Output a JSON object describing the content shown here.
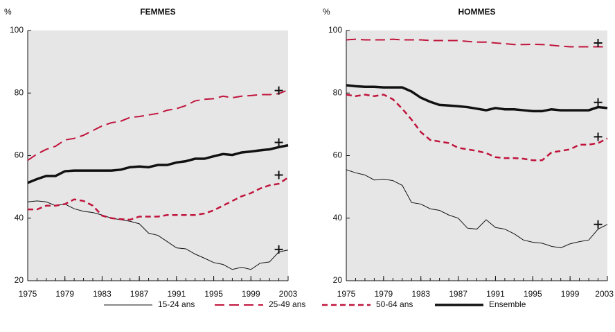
{
  "chart_data": [
    {
      "type": "line",
      "title": "FEMMES",
      "ylabel": "%",
      "x": [
        1975,
        1976,
        1977,
        1978,
        1979,
        1980,
        1981,
        1982,
        1983,
        1984,
        1985,
        1986,
        1987,
        1988,
        1989,
        1990,
        1991,
        1992,
        1993,
        1994,
        1995,
        1996,
        1997,
        1998,
        1999,
        2000,
        2001,
        2002,
        2003
      ],
      "xlim": [
        1975,
        2003
      ],
      "xticks": [
        1975,
        1979,
        1983,
        1987,
        1991,
        1995,
        1999,
        2003
      ],
      "ylim": [
        20,
        100
      ],
      "yticks": [
        20,
        40,
        60,
        80,
        100
      ],
      "background": "#e6e6e6",
      "marker_x": 2002,
      "series": [
        {
          "name": "15-24 ans",
          "color": "#111111",
          "width": 1,
          "dash": "solid",
          "marker": 30,
          "values": [
            45.2,
            45.5,
            45.2,
            44,
            44.5,
            43,
            42.2,
            41.8,
            41,
            40,
            39.5,
            39,
            38.2,
            35.2,
            34.5,
            32.5,
            30.5,
            30.2,
            28.5,
            27.2,
            25.8,
            25.2,
            23.6,
            24.3,
            23.6,
            25.6,
            26,
            29.2,
            29.8
          ]
        },
        {
          "name": "25-49 ans",
          "color": "#c0143c",
          "width": 2,
          "dash": "long",
          "marker": 80.8,
          "values": [
            58.5,
            60.5,
            62,
            63,
            65,
            65.5,
            66.5,
            68,
            69.5,
            70.5,
            71,
            72.2,
            72.5,
            73,
            73.5,
            74.5,
            75,
            76,
            77.5,
            78,
            78.2,
            79,
            78.5,
            79,
            79.2,
            79.5,
            79.5,
            79.8,
            81
          ]
        },
        {
          "name": "50-64 ans",
          "color": "#c0143c",
          "width": 2.5,
          "dash": "short",
          "marker": 53.8,
          "values": [
            42.8,
            42.8,
            44,
            44,
            44.5,
            46,
            45.5,
            44,
            40.8,
            40,
            39.7,
            39.5,
            40.5,
            40.5,
            40.5,
            41,
            41,
            41,
            41,
            41.5,
            42.5,
            44,
            45.5,
            47,
            48,
            49.5,
            50.5,
            51,
            53
          ]
        },
        {
          "name": "Ensemble",
          "color": "#111111",
          "width": 3.5,
          "dash": "solid",
          "marker": 64.2,
          "values": [
            51.3,
            52.5,
            53.5,
            53.5,
            55,
            55.2,
            55.2,
            55.2,
            55.2,
            55.2,
            55.5,
            56.3,
            56.5,
            56.3,
            57,
            57,
            57.8,
            58.2,
            59,
            59,
            59.8,
            60.5,
            60.2,
            61,
            61.3,
            61.7,
            62,
            62.7,
            63.3
          ]
        }
      ]
    },
    {
      "type": "line",
      "title": "HOMMES",
      "ylabel": "%",
      "x": [
        1975,
        1976,
        1977,
        1978,
        1979,
        1980,
        1981,
        1982,
        1983,
        1984,
        1985,
        1986,
        1987,
        1988,
        1989,
        1990,
        1991,
        1992,
        1993,
        1994,
        1995,
        1996,
        1997,
        1998,
        1999,
        2000,
        2001,
        2002,
        2003
      ],
      "xlim": [
        1975,
        2003
      ],
      "xticks": [
        1975,
        1979,
        1983,
        1987,
        1991,
        1995,
        1999,
        2003
      ],
      "ylim": [
        20,
        100
      ],
      "yticks": [
        20,
        40,
        60,
        80,
        100
      ],
      "background": "#e6e6e6",
      "marker_x": 2002,
      "series": [
        {
          "color": "#111111",
          "width": 1,
          "dash": "solid",
          "marker": 38,
          "values": [
            55.5,
            54.5,
            53.8,
            52.2,
            52.5,
            52,
            50.5,
            45,
            44.5,
            43,
            42.5,
            41,
            40,
            36.8,
            36.5,
            39.5,
            37,
            36.5,
            35,
            33,
            32.3,
            32,
            31,
            30.5,
            31.8,
            32.5,
            33,
            36.5,
            38
          ]
        },
        {
          "color": "#c0143c",
          "width": 2,
          "dash": "long",
          "marker": 96,
          "values": [
            97,
            97.2,
            97,
            97,
            97,
            97.2,
            97,
            97,
            97,
            96.8,
            96.8,
            96.8,
            96.8,
            96.5,
            96.3,
            96.3,
            96,
            95.8,
            95.5,
            95.5,
            95.6,
            95.5,
            95.3,
            95,
            94.8,
            94.8,
            94.8,
            94.8,
            94.8
          ]
        },
        {
          "color": "#c0143c",
          "width": 2.5,
          "dash": "short",
          "marker": 66,
          "values": [
            79.5,
            79,
            79.5,
            79,
            79.5,
            78,
            75,
            71.5,
            67.5,
            65,
            64.5,
            64,
            62.5,
            62,
            61.5,
            60.8,
            59.5,
            59.2,
            59.2,
            59,
            58.5,
            58.5,
            61,
            61.5,
            62,
            63.5,
            63.5,
            64,
            65.5
          ]
        },
        {
          "color": "#111111",
          "width": 3.5,
          "dash": "solid",
          "marker": 77,
          "values": [
            82.5,
            82.2,
            82,
            82,
            81.8,
            81.8,
            81.8,
            80.5,
            78.5,
            77.2,
            76.2,
            76,
            75.8,
            75.5,
            75,
            74.5,
            75.2,
            74.8,
            74.8,
            74.5,
            74.2,
            74.2,
            74.8,
            74.5,
            74.5,
            74.5,
            74.5,
            75.5,
            75.2
          ]
        }
      ]
    }
  ]
}
